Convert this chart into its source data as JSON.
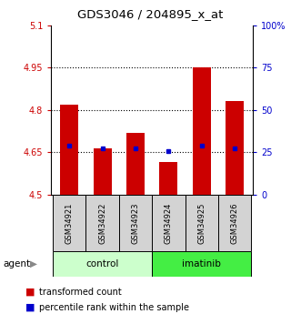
{
  "title": "GDS3046 / 204895_x_at",
  "samples": [
    "GSM34921",
    "GSM34922",
    "GSM34923",
    "GSM34924",
    "GSM34925",
    "GSM34926"
  ],
  "bar_values": [
    4.82,
    4.665,
    4.72,
    4.615,
    4.95,
    4.83
  ],
  "percentile_values": [
    4.675,
    4.665,
    4.665,
    4.655,
    4.675,
    4.665
  ],
  "bar_bottom": 4.5,
  "ylim_left": [
    4.5,
    5.1
  ],
  "ylim_right": [
    0,
    100
  ],
  "yticks_left": [
    4.5,
    4.65,
    4.8,
    4.95,
    5.1
  ],
  "ytick_labels_left": [
    "4.5",
    "4.65",
    "4.8",
    "4.95",
    "5.1"
  ],
  "yticks_right": [
    0,
    25,
    50,
    75,
    100
  ],
  "ytick_labels_right": [
    "0",
    "25",
    "50",
    "75",
    "100%"
  ],
  "bar_color": "#cc0000",
  "percentile_color": "#0000cc",
  "control_color": "#ccffcc",
  "imatinib_color": "#44ee44",
  "grid_color": "#000000",
  "left_tick_color": "#cc0000",
  "right_tick_color": "#0000cc",
  "bar_width": 0.55,
  "agent_label": "agent",
  "group_labels": [
    "control",
    "imatinib"
  ],
  "legend_label1": "transformed count",
  "legend_label2": "percentile rank within the sample"
}
